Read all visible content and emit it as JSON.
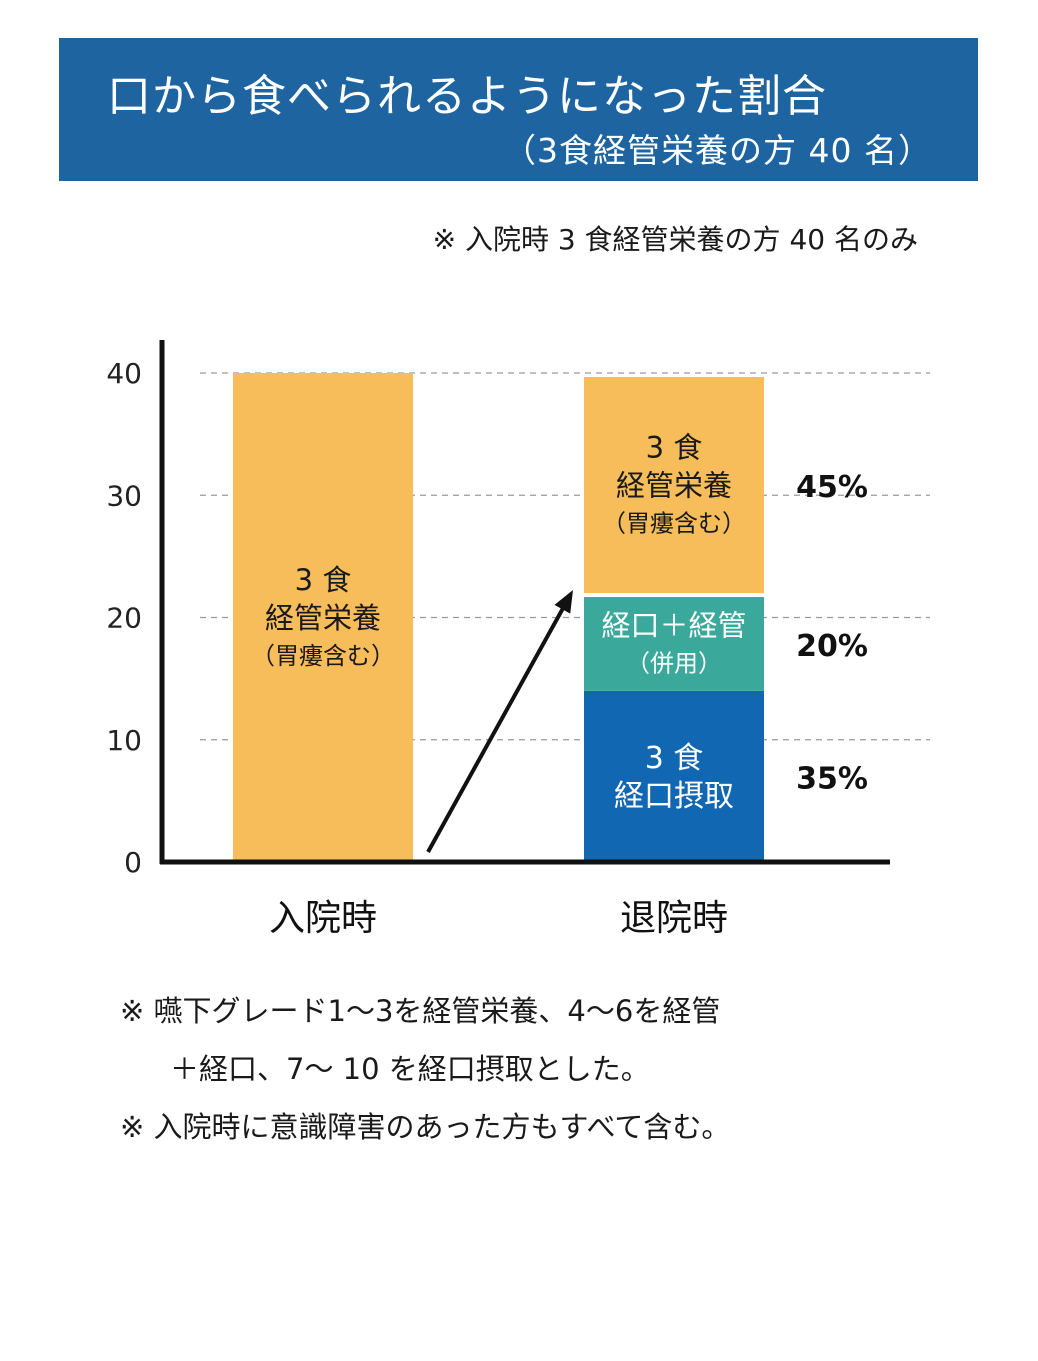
{
  "header": {
    "title": "口から食べられるようになった割合",
    "subtitle": "（3食経管栄養の方 40 名）"
  },
  "note_top": "※ 入院時 3 食経管栄養の方 40 名のみ",
  "notes": [
    "※ 嚥下グレード1～3を経管栄養、4～6を経管",
    "＋経口、7～ 10 を経口摂取とした。",
    "※ 入院時に意識障害のあった方もすべて含む。"
  ],
  "colors": {
    "header_bg": "#1d64a0",
    "tube": "#f6bd5a",
    "mixed": "#3aa99c",
    "oral": "#1167b1"
  },
  "chart_data": {
    "type": "bar",
    "stacked": true,
    "categories": [
      "入院時",
      "退院時"
    ],
    "ylim": [
      0,
      40
    ],
    "yticks": [
      "0",
      "10",
      "20",
      "30",
      "40"
    ],
    "grid": true,
    "series": [
      {
        "key": "oral",
        "label_lines": [
          "3 食",
          "経口摂取"
        ],
        "values": [
          0,
          14
        ],
        "percent": "35%"
      },
      {
        "key": "mixed",
        "label_lines": [
          "経口＋経管",
          "（併用）"
        ],
        "values": [
          0,
          8
        ],
        "percent": "20%"
      },
      {
        "key": "tube",
        "label_lines": [
          "3 食",
          "経管栄養",
          "（胃瘻含む）"
        ],
        "values": [
          40,
          18
        ],
        "percent": "45%"
      }
    ]
  }
}
